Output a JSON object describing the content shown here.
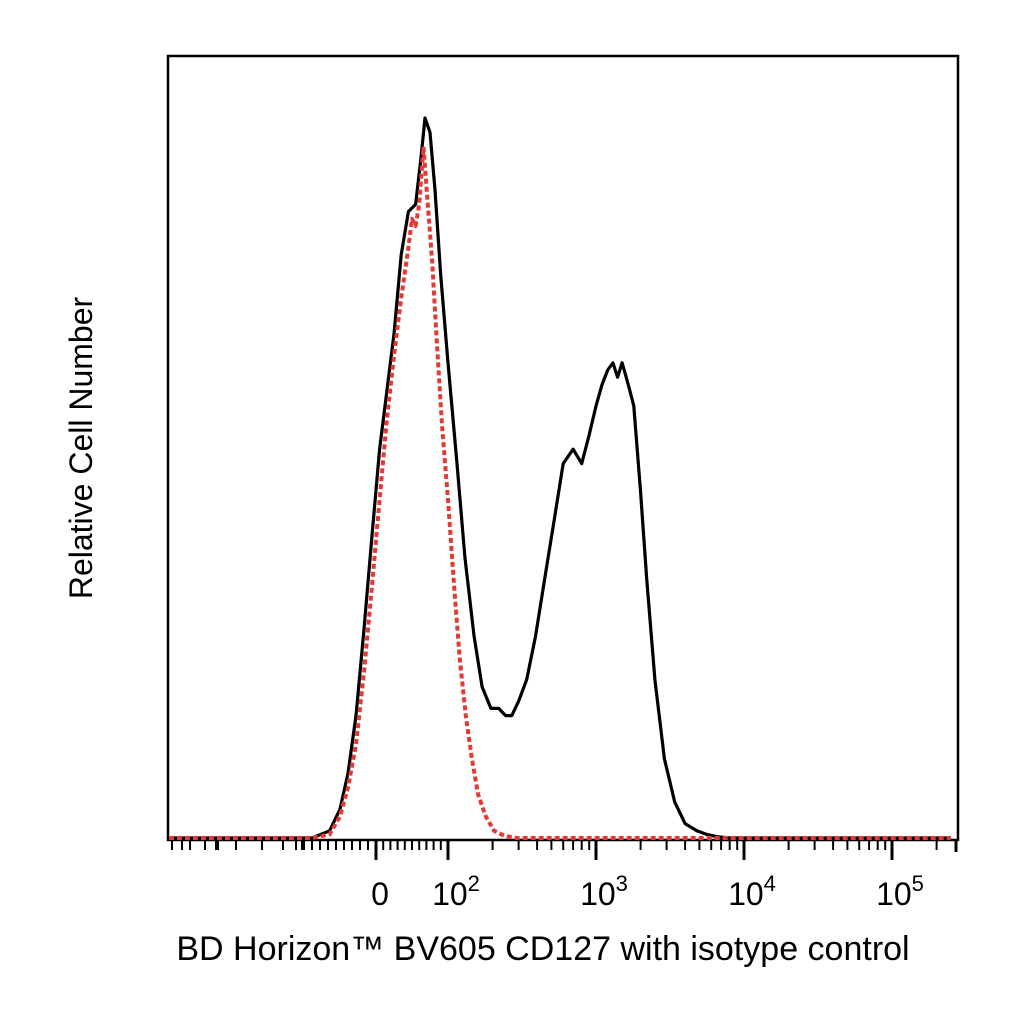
{
  "chart_data": {
    "type": "line",
    "title": "",
    "xlabel": "BD Horizon™ BV605 CD127 with isotype control",
    "ylabel": "Relative Cell Number",
    "xscale": "biexponential",
    "xlim": [
      -270,
      250000
    ],
    "ylim": [
      0,
      100
    ],
    "x_tick_labels": [
      {
        "value": 0,
        "label": "0",
        "sup": ""
      },
      {
        "value": 100,
        "label": "10",
        "sup": "2"
      },
      {
        "value": 1000,
        "label": "10",
        "sup": "3"
      },
      {
        "value": 10000,
        "label": "10",
        "sup": "4"
      },
      {
        "value": 100000,
        "label": "10",
        "sup": "5"
      }
    ],
    "grid": false,
    "legend": "none",
    "series": [
      {
        "color": "#000000",
        "style": "solid",
        "x": [
          -270,
          -80,
          -58,
          -45,
          -35,
          -25,
          -15,
          -5,
          5,
          15,
          25,
          35,
          45,
          55,
          62,
          68,
          75,
          82,
          90,
          100,
          115,
          130,
          150,
          170,
          195,
          220,
          245,
          270,
          300,
          340,
          390,
          450,
          520,
          600,
          700,
          800,
          900,
          1000,
          1100,
          1200,
          1300,
          1400,
          1500,
          1600,
          1700,
          1800,
          2000,
          2200,
          2500,
          2900,
          3400,
          4000,
          4800,
          5600,
          6500,
          8000,
          12000,
          250000
        ],
        "y": [
          0,
          0,
          1,
          4,
          9,
          17,
          29,
          42,
          54,
          62,
          70,
          81,
          87,
          88,
          94,
          100,
          98,
          90,
          78,
          66,
          52,
          39,
          28,
          21,
          18,
          18,
          17,
          17,
          19,
          22,
          28,
          36,
          44,
          52,
          54,
          52,
          56,
          60,
          63,
          65,
          66,
          64,
          66,
          64,
          62,
          60,
          48,
          36,
          22,
          11,
          5,
          2,
          1,
          0.5,
          0.2,
          0,
          0,
          0
        ]
      },
      {
        "color": "#e53935",
        "style": "dotted",
        "x": [
          -270,
          -80,
          -58,
          -45,
          -35,
          -25,
          -15,
          -5,
          5,
          15,
          25,
          35,
          45,
          50,
          55,
          60,
          66,
          72,
          78,
          85,
          92,
          100,
          110,
          120,
          132,
          145,
          160,
          180,
          205,
          240,
          290,
          350,
          250000
        ],
        "y": [
          0,
          0,
          0.5,
          3,
          7,
          13,
          23,
          35,
          47,
          58,
          67,
          75,
          82,
          86,
          85,
          88,
          96,
          88,
          80,
          68,
          57,
          47,
          35,
          25,
          17,
          11,
          6,
          3,
          1,
          0.3,
          0,
          0,
          0
        ]
      }
    ]
  }
}
